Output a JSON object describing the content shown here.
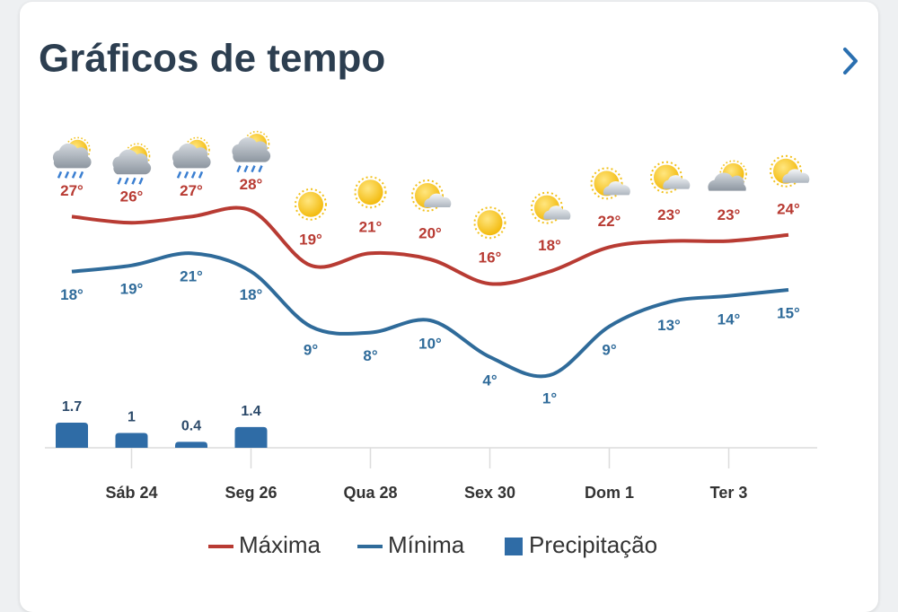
{
  "chart_data": {
    "type": "line",
    "title": "Gráficos de tempo",
    "categories": [
      null,
      "Sáb 24",
      null,
      "Seg 26",
      null,
      "Qua 28",
      null,
      "Sex 30",
      null,
      "Dom 1",
      null,
      "Ter 3",
      null
    ],
    "series": [
      {
        "name": "Máxima",
        "color": "#b83b33",
        "values": [
          27,
          26,
          27,
          28,
          19,
          21,
          20,
          16,
          18,
          22,
          23,
          23,
          24
        ],
        "value_labels": [
          "27°",
          "26°",
          "27°",
          "28°",
          "19°",
          "21°",
          "20°",
          "16°",
          "18°",
          "22°",
          "23°",
          "23°",
          "24°"
        ]
      },
      {
        "name": "Mínima",
        "color": "#2f6b9a",
        "values": [
          18,
          19,
          21,
          18,
          9,
          8,
          10,
          4,
          1,
          9,
          13,
          14,
          15
        ],
        "value_labels": [
          "18°",
          "19°",
          "21°",
          "18°",
          "9°",
          "8°",
          "10°",
          "4°",
          "1°",
          "9°",
          "13°",
          "14°",
          "15°"
        ]
      },
      {
        "name": "Precipitação",
        "type": "bar",
        "color": "#2f6ca6",
        "values": [
          1.7,
          1,
          0.4,
          1.4,
          null,
          null,
          null,
          null,
          null,
          null,
          null,
          null,
          null
        ]
      }
    ]
  }
}
